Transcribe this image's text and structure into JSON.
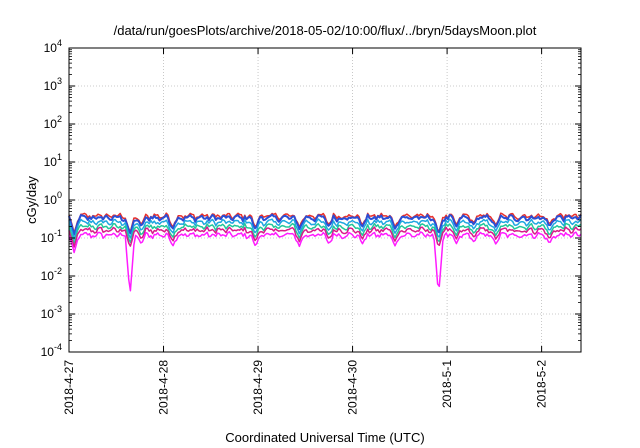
{
  "chart_data": {
    "type": "line",
    "title": "/data/run/goesPlots/archive/2018-05-02/10:00/flux/../bryn/5daysMoon.plot",
    "xlabel": "Coordinated Universal Time (UTC)",
    "ylabel": "cGy/day",
    "yscale": "log",
    "ylim": [
      0.0001,
      10000
    ],
    "xlim": [
      "2018-04-27 00:00",
      "2018-05-02 10:00"
    ],
    "x_ticks": [
      "2018-4-27",
      "2018-4-28",
      "2018-4-29",
      "2018-4-30",
      "2018-5-1",
      "2018-5-2"
    ],
    "y_ticks": [
      {
        "value": 0.0001,
        "base": "10",
        "exp": "-4"
      },
      {
        "value": 0.001,
        "base": "10",
        "exp": "-3"
      },
      {
        "value": 0.01,
        "base": "10",
        "exp": "-2"
      },
      {
        "value": 0.1,
        "base": "10",
        "exp": "-1"
      },
      {
        "value": 1,
        "base": "10",
        "exp": "0"
      },
      {
        "value": 10,
        "base": "10",
        "exp": "1"
      },
      {
        "value": 100,
        "base": "10",
        "exp": "2"
      },
      {
        "value": 1000,
        "base": "10",
        "exp": "3"
      },
      {
        "value": 10000,
        "base": "10",
        "exp": "4"
      }
    ],
    "grid": true,
    "legend": "none",
    "series": [
      {
        "color": "#e8302c",
        "level": 0.38
      },
      {
        "color": "#2a4fd6",
        "level": 0.34
      },
      {
        "color": "#1ea7e0",
        "level": 0.26
      },
      {
        "color": "#22c79a",
        "level": 0.2
      },
      {
        "color": "#d81b8a",
        "level": 0.16
      },
      {
        "color": "#ff1cff",
        "level": 0.12
      }
    ],
    "dips": [
      {
        "x": "2018-04-27 15:30",
        "min": 0.003
      },
      {
        "x": "2018-04-30 21:50",
        "min": 0.003
      },
      {
        "x": "2018-04-27 01:20",
        "min": 0.04
      },
      {
        "x": "2018-04-27 18:20",
        "min": 0.07
      },
      {
        "x": "2018-04-28 02:20",
        "min": 0.06
      },
      {
        "x": "2018-04-28 23:20",
        "min": 0.06
      },
      {
        "x": "2018-04-29 10:30",
        "min": 0.06
      },
      {
        "x": "2018-04-29 18:00",
        "min": 0.07
      },
      {
        "x": "2018-04-30 02:30",
        "min": 0.07
      },
      {
        "x": "2018-04-30 10:50",
        "min": 0.06
      },
      {
        "x": "2018-05-01 02:20",
        "min": 0.07
      },
      {
        "x": "2018-05-01 06:40",
        "min": 0.08
      },
      {
        "x": "2018-05-01 12:20",
        "min": 0.07
      },
      {
        "x": "2018-05-02 02:00",
        "min": 0.07
      }
    ]
  }
}
